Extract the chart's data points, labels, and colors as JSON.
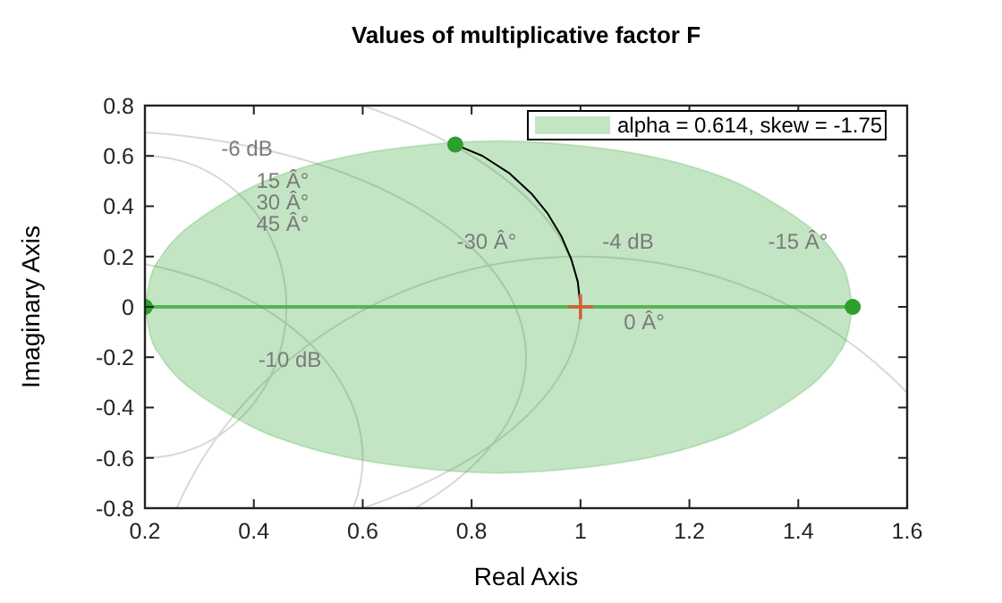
{
  "chart_data": {
    "type": "line",
    "title": "Values of multiplicative factor F",
    "xlabel": "Real Axis",
    "ylabel": "Imaginary Axis",
    "xlim": [
      0.2,
      1.6
    ],
    "xticks": [
      0.2,
      0.4,
      0.6,
      0.8,
      1,
      1.2,
      1.4,
      1.6
    ],
    "ylim": [
      -0.8,
      0.8
    ],
    "yticks": [
      -0.8,
      -0.6,
      -0.4,
      -0.2,
      0,
      0.2,
      0.4,
      0.6,
      0.8
    ],
    "legend": "top right",
    "series": [
      {
        "name": "alpha = 0.614, skew = -1.75",
        "color": "#2ca02c",
        "x": [
          0.2,
          0.21,
          0.23,
          0.26,
          0.3,
          0.35,
          0.4,
          0.5,
          0.6,
          0.7,
          0.85,
          1.0,
          1.1,
          1.2,
          1.3,
          1.35,
          1.4,
          1.44,
          1.47,
          1.49,
          1.5
        ],
        "values": [
          0,
          0,
          0,
          0,
          0,
          0,
          0,
          0,
          0,
          0,
          0,
          0,
          0,
          0,
          0,
          0,
          0,
          0,
          0,
          0,
          0
        ],
        "upper": [
          0,
          0.115,
          0.2,
          0.28,
          0.35,
          0.42,
          0.48,
          0.56,
          0.61,
          0.64,
          0.66,
          0.64,
          0.61,
          0.56,
          0.48,
          0.42,
          0.35,
          0.28,
          0.2,
          0.115,
          0
        ],
        "lower": [
          0,
          -0.115,
          -0.2,
          -0.28,
          -0.35,
          -0.42,
          -0.48,
          -0.56,
          -0.61,
          -0.64,
          -0.66,
          -0.64,
          -0.61,
          -0.56,
          -0.48,
          -0.42,
          -0.35,
          -0.28,
          -0.2,
          -0.115,
          0
        ]
      },
      {
        "type": "line",
        "color": "#000000",
        "x": [
          0.77,
          0.82,
          0.87,
          0.91,
          0.94,
          0.965,
          0.983,
          0.995,
          1.0
        ],
        "values": [
          0.645,
          0.6,
          0.53,
          0.45,
          0.37,
          0.28,
          0.19,
          0.1,
          0
        ]
      },
      {
        "type": "scatter",
        "color": "#2ca02c",
        "x": [
          0.2,
          1.5,
          0.77
        ],
        "values": [
          0,
          0,
          0.645
        ],
        "marker": "circle"
      },
      {
        "type": "scatter",
        "color": "#d0603a",
        "x": [
          1
        ],
        "values": [
          0
        ],
        "marker": "cross"
      }
    ],
    "annotations": [
      "-6 dB",
      "15 Â°",
      "30 Â°",
      "45 Â°",
      "-30 Â°",
      "-4 dB",
      "-15 Â°",
      "0 Â°",
      "-10 dB"
    ]
  }
}
